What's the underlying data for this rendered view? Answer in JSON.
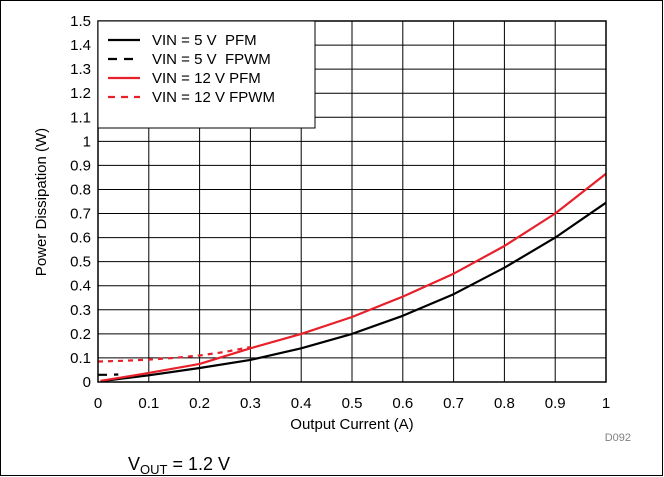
{
  "chart_data": {
    "type": "line",
    "xlabel": "Output Current (A)",
    "ylabel": "Power Dissipation (W)",
    "xlim": [
      0,
      1
    ],
    "ylim": [
      0,
      1.5
    ],
    "x_ticks": [
      "0",
      "0.1",
      "0.2",
      "0.3",
      "0.4",
      "0.5",
      "0.6",
      "0.7",
      "0.8",
      "0.9",
      "1"
    ],
    "y_ticks": [
      "0",
      "0.1",
      "0.2",
      "0.3",
      "0.4",
      "0.5",
      "0.6",
      "0.7",
      "0.8",
      "0.9",
      "1",
      "1.1",
      "1.2",
      "1.3",
      "1.4",
      "1.5"
    ],
    "grid": true,
    "legend_position": "top-left",
    "series": [
      {
        "name": "VIN = 5 V  PFM",
        "color": "#000000",
        "dash": "solid",
        "points": [
          [
            0.005,
            0.003
          ],
          [
            0.05,
            0.015
          ],
          [
            0.1,
            0.028
          ],
          [
            0.2,
            0.058
          ],
          [
            0.3,
            0.092
          ],
          [
            0.4,
            0.14
          ],
          [
            0.5,
            0.2
          ],
          [
            0.6,
            0.275
          ],
          [
            0.7,
            0.365
          ],
          [
            0.8,
            0.475
          ],
          [
            0.9,
            0.6
          ],
          [
            1.0,
            0.745
          ]
        ]
      },
      {
        "name": "VIN = 5 V  FPWM",
        "color": "#000000",
        "dash": "dashed",
        "points": [
          [
            0.0,
            0.03
          ],
          [
            0.02,
            0.03
          ],
          [
            0.04,
            0.031
          ]
        ]
      },
      {
        "name": "VIN = 12 V PFM",
        "color": "#e8202a",
        "dash": "solid",
        "points": [
          [
            0.005,
            0.005
          ],
          [
            0.05,
            0.02
          ],
          [
            0.1,
            0.038
          ],
          [
            0.2,
            0.075
          ],
          [
            0.3,
            0.14
          ],
          [
            0.4,
            0.2
          ],
          [
            0.5,
            0.27
          ],
          [
            0.6,
            0.355
          ],
          [
            0.7,
            0.45
          ],
          [
            0.8,
            0.565
          ],
          [
            0.9,
            0.7
          ],
          [
            1.0,
            0.865
          ]
        ]
      },
      {
        "name": "VIN = 12 V FPWM",
        "color": "#e8202a",
        "dash": "dotted",
        "points": [
          [
            0.0,
            0.085
          ],
          [
            0.05,
            0.088
          ],
          [
            0.1,
            0.093
          ],
          [
            0.15,
            0.1
          ],
          [
            0.2,
            0.11
          ],
          [
            0.25,
            0.125
          ],
          [
            0.3,
            0.145
          ]
        ]
      }
    ]
  },
  "figure_code": "D092",
  "note": {
    "prefix": "V",
    "subscript": "OUT",
    "suffix": " = 1.2 V"
  }
}
